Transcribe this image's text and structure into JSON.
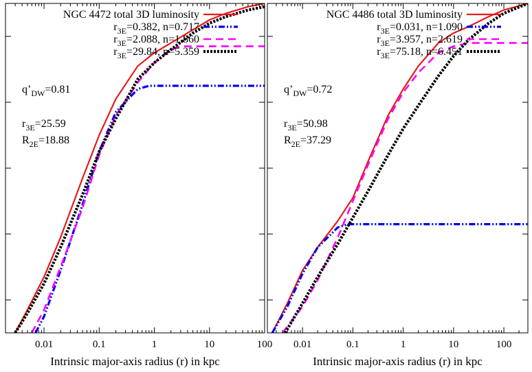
{
  "chart_data": [
    {
      "type": "line",
      "title": "",
      "xlabel": "Intrinsic major-axis radius (r) in kpc",
      "ylabel": "",
      "xscale": "log",
      "xlim": [
        0.002,
        100
      ],
      "ylim": [
        0,
        1
      ],
      "xticks": [
        0.01,
        0.1,
        1,
        10,
        100
      ],
      "xtick_labels": [
        "0.01",
        "0.1",
        "1",
        "10",
        "100"
      ],
      "yticks_unlabeled": [
        0.1,
        0.3,
        0.5,
        0.7,
        0.9
      ],
      "grid": false,
      "legend": "top-right",
      "annotations": [
        {
          "name": "q-dw",
          "base": "q’",
          "sub": "DW",
          "value": "=0.81"
        },
        {
          "name": "r3e",
          "base": "r",
          "sub": "3E",
          "value": "=25.59"
        },
        {
          "name": "r2e",
          "base": "R",
          "sub": "2E",
          "value": "=18.88"
        }
      ],
      "series": [
        {
          "name": "NGC 4472 total 3D luminosity",
          "legend_base": "",
          "legend_sub": "",
          "legend_rest": "NGC 4472 total 3D luminosity",
          "style": "solid",
          "color": "#e41a1c",
          "x": [
            0.003,
            0.005,
            0.01,
            0.02,
            0.05,
            0.1,
            0.2,
            0.5,
            1,
            2,
            5,
            10,
            20,
            50,
            100
          ],
          "y": [
            0.0,
            0.07,
            0.17,
            0.29,
            0.47,
            0.6,
            0.71,
            0.81,
            0.85,
            0.88,
            0.92,
            0.95,
            0.97,
            0.99,
            1.0
          ]
        },
        {
          "name": "r3E=0.382, n=0.717",
          "legend_base": "r",
          "legend_sub": "3E",
          "legend_rest": "=0.382, n=0.717",
          "style": "dash-dot-dot",
          "color": "#0000ee",
          "x": [
            0.007,
            0.01,
            0.02,
            0.05,
            0.1,
            0.2,
            0.5,
            0.8,
            1,
            10,
            100
          ],
          "y": [
            0.0,
            0.05,
            0.19,
            0.39,
            0.55,
            0.67,
            0.74,
            0.75,
            0.75,
            0.75,
            0.75
          ]
        },
        {
          "name": "r3E=2.088, n=1.860",
          "legend_base": "r",
          "legend_sub": "3E",
          "legend_rest": "=2.088, n=1.860",
          "style": "dashed",
          "color": "#ff00ff",
          "x": [
            0.006,
            0.01,
            0.02,
            0.05,
            0.1,
            0.2,
            0.5,
            1,
            2,
            3,
            5,
            10,
            100
          ],
          "y": [
            0.0,
            0.07,
            0.2,
            0.38,
            0.54,
            0.66,
            0.76,
            0.82,
            0.86,
            0.87,
            0.87,
            0.87,
            0.87
          ]
        },
        {
          "name": "r3E=29.84, n=5.359",
          "legend_base": "r",
          "legend_sub": "3E",
          "legend_rest": "=29.84, n=5.359",
          "style": "dotted",
          "color": "#000000",
          "x": [
            0.003,
            0.005,
            0.01,
            0.02,
            0.05,
            0.1,
            0.2,
            0.5,
            1,
            2,
            5,
            10,
            20,
            50,
            100
          ],
          "y": [
            0.0,
            0.06,
            0.15,
            0.26,
            0.42,
            0.55,
            0.65,
            0.77,
            0.82,
            0.86,
            0.91,
            0.94,
            0.96,
            0.98,
            0.99
          ]
        }
      ]
    },
    {
      "type": "line",
      "title": "",
      "xlabel": "Intrinsic major-axis radius (r) in kpc",
      "ylabel": "",
      "xscale": "log",
      "xlim": [
        0.002,
        300
      ],
      "ylim": [
        0,
        1
      ],
      "xticks": [
        0.01,
        0.1,
        1,
        10,
        100
      ],
      "xtick_labels": [
        "0.01",
        "0.1",
        "1",
        "10",
        "100"
      ],
      "yticks_unlabeled": [
        0.1,
        0.3,
        0.5,
        0.7,
        0.9
      ],
      "grid": false,
      "legend": "top-right",
      "annotations": [
        {
          "name": "q-dw",
          "base": "q’",
          "sub": "DW",
          "value": "=0.72"
        },
        {
          "name": "r3e",
          "base": "r",
          "sub": "3E",
          "value": "=50.98"
        },
        {
          "name": "r2e",
          "base": "R",
          "sub": "2E",
          "value": "=37.29"
        }
      ],
      "series": [
        {
          "name": "NGC 4486 total 3D luminosity",
          "legend_base": "",
          "legend_sub": "",
          "legend_rest": "NGC 4486 total 3D luminosity",
          "style": "solid",
          "color": "#e41a1c",
          "x": [
            0.0025,
            0.005,
            0.01,
            0.02,
            0.05,
            0.1,
            0.2,
            0.5,
            1,
            2,
            5,
            10,
            20,
            50,
            100,
            300
          ],
          "y": [
            0.0,
            0.09,
            0.19,
            0.26,
            0.34,
            0.41,
            0.52,
            0.66,
            0.74,
            0.81,
            0.88,
            0.91,
            0.93,
            0.96,
            0.98,
            1.0
          ]
        },
        {
          "name": "r3E=0.031, n=1.090",
          "legend_base": "r",
          "legend_sub": "3E",
          "legend_rest": "=0.031, n=1.090",
          "style": "dash-dot-dot",
          "color": "#0000ee",
          "x": [
            0.0025,
            0.005,
            0.01,
            0.02,
            0.05,
            0.08,
            0.1,
            1,
            10,
            300
          ],
          "y": [
            0.0,
            0.08,
            0.18,
            0.26,
            0.32,
            0.33,
            0.33,
            0.33,
            0.33,
            0.33
          ]
        },
        {
          "name": "r3E=3.957, n=2.619",
          "legend_base": "r",
          "legend_sub": "3E",
          "legend_rest": "=3.957, n=2.619",
          "style": "dashed",
          "color": "#ff00ff",
          "x": [
            0.004,
            0.01,
            0.02,
            0.05,
            0.1,
            0.2,
            0.5,
            1,
            2,
            5,
            10,
            20,
            50,
            100,
            300
          ],
          "y": [
            0.0,
            0.08,
            0.16,
            0.29,
            0.4,
            0.51,
            0.65,
            0.73,
            0.79,
            0.85,
            0.87,
            0.88,
            0.88,
            0.88,
            0.88
          ]
        },
        {
          "name": "r3E=75.18, n=6.451",
          "legend_base": "r",
          "legend_sub": "3E",
          "legend_rest": "=75.18, n=6.451",
          "style": "dotted",
          "color": "#000000",
          "x": [
            0.0045,
            0.01,
            0.02,
            0.05,
            0.1,
            0.2,
            0.5,
            1,
            2,
            5,
            10,
            20,
            50,
            100,
            300
          ],
          "y": [
            0.0,
            0.09,
            0.17,
            0.27,
            0.35,
            0.43,
            0.54,
            0.62,
            0.69,
            0.78,
            0.84,
            0.89,
            0.94,
            0.97,
            1.0
          ]
        }
      ]
    }
  ]
}
